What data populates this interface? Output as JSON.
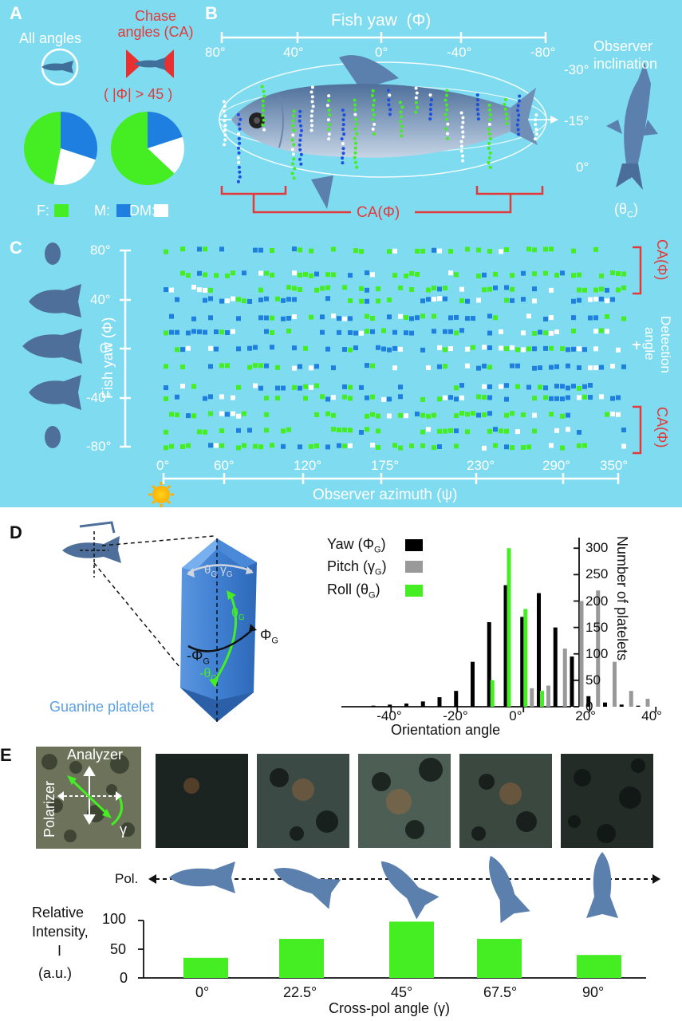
{
  "labels": {
    "A": "A",
    "B": "B",
    "C": "C",
    "D": "D",
    "E": "E"
  },
  "panelA": {
    "all_angles": "All angles",
    "chase_title": "Chase angles (CA)",
    "chase_rule": "( |Φ| > 45 )",
    "legend": {
      "F": "F:",
      "M": "M:",
      "DM": "DM:"
    },
    "pies": [
      {
        "name": "All angles",
        "F": 0.47,
        "M": 0.3,
        "DM": 0.23
      },
      {
        "name": "Chase angles",
        "F": 0.63,
        "M": 0.2,
        "DM": 0.17
      }
    ]
  },
  "panelB": {
    "title": "Fish yaw",
    "symbol": "(Φ)",
    "yaw_ticks": [
      "80°",
      "40°",
      "0°",
      "-40°",
      "-80°"
    ],
    "obs_title1": "Observer",
    "obs_title2": "inclination",
    "incl_ticks": [
      "-30°",
      "-15°",
      "0°"
    ],
    "obs_symbol": "(θ",
    "obs_sub": "C",
    "ca_label": "CA(Φ)"
  },
  "panelC": {
    "ylabel": "Fish yaw (Φ)",
    "yticks": [
      "80°",
      "40°",
      "0°",
      "-40°",
      "-80°"
    ],
    "xlabel": "Observer azimuth (ψ)",
    "xticks": [
      "0°",
      "60°",
      "120°",
      "175°",
      "230°",
      "290°",
      "350°"
    ],
    "ca_top": "CA(Φ)",
    "ca_bottom": "CA(Φ)",
    "detection1": "Detection",
    "detection2": "angle"
  },
  "panelD": {
    "guanine": "Guanine platelet",
    "legend": [
      "Yaw (Φ",
      "Pitch (γ",
      "Roll (θ"
    ],
    "legend_sub": "G",
    "xlabel": "Orientation angle",
    "ylabel": "Number of platelets",
    "xticks": [
      "-40°",
      "-20°",
      "0°",
      "20°",
      "40°"
    ],
    "yticks": [
      "0",
      "50",
      "100",
      "150",
      "200",
      "250",
      "300"
    ],
    "colors": {
      "yaw": "#000000",
      "pitch": "#999999",
      "roll": "#44ee22"
    }
  },
  "chart_data": {
    "type": "bar",
    "xlabel": "Orientation angle",
    "ylabel": "Number of platelets",
    "ylim": [
      0,
      320
    ],
    "series": [
      {
        "name": "Yaw (ΦG)",
        "x": [
          -45,
          -40,
          -35,
          -30,
          -25,
          -20,
          -15,
          -10,
          -5,
          0,
          5,
          10,
          15,
          20,
          25,
          30,
          35
        ],
        "values": [
          2,
          4,
          6,
          10,
          18,
          30,
          85,
          160,
          230,
          170,
          215,
          150,
          95,
          20,
          8,
          4,
          2
        ]
      },
      {
        "name": "Pitch (γG)",
        "x": [
          0,
          5,
          10,
          15,
          20,
          25,
          30,
          35
        ],
        "values": [
          35,
          40,
          110,
          200,
          220,
          85,
          30,
          15
        ]
      },
      {
        "name": "Roll (θG)",
        "x": [
          -10,
          -5,
          0,
          5,
          10
        ],
        "values": [
          50,
          300,
          185,
          30,
          0
        ]
      }
    ]
  },
  "panelE": {
    "analyzer": "Analyzer",
    "polarizer": "Polarizer",
    "gamma": "γ",
    "pol": "Pol.",
    "ylabel": [
      "Relative",
      "Intensity,",
      "I",
      "(a.u.)"
    ],
    "yticks": [
      "100",
      "50",
      "0"
    ],
    "xticks": [
      "0°",
      "22.5°",
      "45°",
      "67.5°",
      "90°"
    ],
    "xlabel": "Cross-pol angle (γ)",
    "values": [
      35,
      68,
      98,
      68,
      40
    ]
  }
}
